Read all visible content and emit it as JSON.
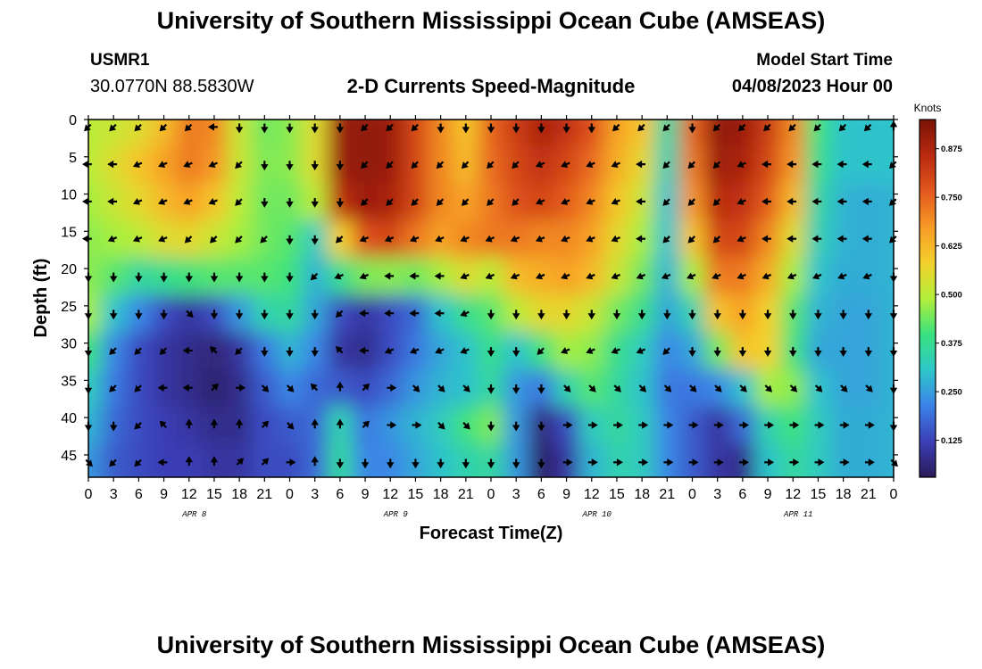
{
  "header": {
    "title": "University of Southern Mississippi Ocean Cube (AMSEAS)",
    "station_id": "USMR1",
    "station_coords": "30.0770N  88.5830W",
    "subtitle": "2-D Currents Speed-Magnitude",
    "model_start_label": "Model Start Time",
    "model_start_value": "04/08/2023 Hour 00"
  },
  "footer": {
    "title": "University of Southern Mississippi Ocean Cube (AMSEAS)"
  },
  "chart_data": {
    "type": "heatmap",
    "title": "2-D Currents Speed-Magnitude",
    "xlabel": "Forecast Time(Z)",
    "ylabel": "Depth (ft)",
    "x_ticks": [
      "0",
      "3",
      "6",
      "9",
      "12",
      "15",
      "18",
      "21",
      "0",
      "3",
      "6",
      "9",
      "12",
      "15",
      "18",
      "21",
      "0",
      "3",
      "6",
      "9",
      "12",
      "15",
      "18",
      "21",
      "0",
      "3",
      "6",
      "9",
      "12",
      "15",
      "18",
      "21",
      "0"
    ],
    "day_labels": [
      "APR 8",
      "APR 9",
      "APR 10",
      "APR 11"
    ],
    "forecast_hours": [
      0,
      3,
      6,
      9,
      12,
      15,
      18,
      21,
      24,
      27,
      30,
      33,
      36,
      39,
      42,
      45,
      48,
      51,
      54,
      57,
      60,
      63,
      66,
      69,
      72,
      75,
      78,
      81,
      84,
      87,
      90,
      93,
      96
    ],
    "y_ticks": [
      0,
      5,
      10,
      15,
      20,
      25,
      30,
      35,
      40,
      45
    ],
    "ylim": [
      0,
      48
    ],
    "depths_ft": [
      1,
      6,
      11,
      16,
      21,
      26,
      31,
      36,
      41,
      46
    ],
    "colorbar": {
      "label": "Knots",
      "ticks": [
        0.125,
        0.25,
        0.375,
        0.5,
        0.625,
        0.75,
        0.875
      ],
      "tick_labels": [
        "0.125",
        "0.250",
        "0.375",
        "0.500",
        "0.625",
        "0.750",
        "0.875"
      ],
      "range": [
        0.03,
        0.95
      ],
      "colors": [
        "#2a1a58",
        "#3b3fb7",
        "#3b82e8",
        "#2ec7c9",
        "#39e27e",
        "#b3ef3a",
        "#f4d02b",
        "#f79a26",
        "#e3571e",
        "#b92a10",
        "#7a1205"
      ]
    },
    "speed_knots": [
      [
        0.5,
        0.52,
        0.55,
        0.62,
        0.72,
        0.7,
        0.52,
        0.44,
        0.46,
        0.55,
        0.9,
        0.92,
        0.9,
        0.8,
        0.7,
        0.6,
        0.75,
        0.82,
        0.88,
        0.84,
        0.78,
        0.66,
        0.6,
        0.35,
        0.75,
        0.92,
        0.9,
        0.82,
        0.7,
        0.4,
        0.3,
        0.3,
        0.3
      ],
      [
        0.5,
        0.55,
        0.6,
        0.66,
        0.72,
        0.68,
        0.52,
        0.45,
        0.46,
        0.55,
        0.9,
        0.92,
        0.9,
        0.8,
        0.7,
        0.62,
        0.74,
        0.8,
        0.84,
        0.8,
        0.74,
        0.64,
        0.56,
        0.33,
        0.72,
        0.9,
        0.88,
        0.8,
        0.68,
        0.38,
        0.3,
        0.3,
        0.3
      ],
      [
        0.48,
        0.52,
        0.56,
        0.62,
        0.66,
        0.6,
        0.5,
        0.44,
        0.44,
        0.5,
        0.85,
        0.9,
        0.88,
        0.8,
        0.7,
        0.66,
        0.72,
        0.78,
        0.8,
        0.76,
        0.7,
        0.6,
        0.52,
        0.3,
        0.68,
        0.86,
        0.84,
        0.76,
        0.62,
        0.35,
        0.28,
        0.27,
        0.28
      ],
      [
        0.46,
        0.48,
        0.5,
        0.55,
        0.56,
        0.52,
        0.48,
        0.44,
        0.42,
        0.32,
        0.58,
        0.78,
        0.8,
        0.72,
        0.66,
        0.7,
        0.72,
        0.72,
        0.7,
        0.7,
        0.66,
        0.56,
        0.48,
        0.3,
        0.6,
        0.8,
        0.8,
        0.7,
        0.55,
        0.33,
        0.28,
        0.27,
        0.28
      ],
      [
        0.46,
        0.42,
        0.36,
        0.38,
        0.4,
        0.42,
        0.42,
        0.42,
        0.4,
        0.28,
        0.38,
        0.45,
        0.46,
        0.44,
        0.48,
        0.55,
        0.5,
        0.62,
        0.64,
        0.66,
        0.62,
        0.52,
        0.44,
        0.28,
        0.48,
        0.72,
        0.72,
        0.64,
        0.48,
        0.3,
        0.27,
        0.27,
        0.28
      ],
      [
        0.48,
        0.3,
        0.22,
        0.14,
        0.1,
        0.14,
        0.24,
        0.34,
        0.36,
        0.26,
        0.14,
        0.1,
        0.14,
        0.18,
        0.3,
        0.38,
        0.42,
        0.5,
        0.56,
        0.56,
        0.52,
        0.44,
        0.38,
        0.26,
        0.34,
        0.6,
        0.66,
        0.58,
        0.42,
        0.28,
        0.26,
        0.26,
        0.28
      ],
      [
        0.4,
        0.22,
        0.14,
        0.1,
        0.08,
        0.06,
        0.1,
        0.2,
        0.28,
        0.22,
        0.1,
        0.08,
        0.14,
        0.2,
        0.26,
        0.3,
        0.38,
        0.3,
        0.4,
        0.48,
        0.46,
        0.38,
        0.32,
        0.22,
        0.26,
        0.44,
        0.6,
        0.58,
        0.4,
        0.26,
        0.26,
        0.26,
        0.28
      ],
      [
        0.32,
        0.2,
        0.14,
        0.1,
        0.08,
        0.05,
        0.08,
        0.16,
        0.22,
        0.18,
        0.16,
        0.14,
        0.18,
        0.24,
        0.28,
        0.3,
        0.36,
        0.24,
        0.2,
        0.34,
        0.42,
        0.36,
        0.3,
        0.2,
        0.2,
        0.22,
        0.3,
        0.48,
        0.46,
        0.3,
        0.26,
        0.26,
        0.28
      ],
      [
        0.28,
        0.18,
        0.14,
        0.12,
        0.1,
        0.08,
        0.08,
        0.14,
        0.16,
        0.18,
        0.34,
        0.2,
        0.24,
        0.28,
        0.32,
        0.4,
        0.45,
        0.24,
        0.06,
        0.14,
        0.32,
        0.36,
        0.32,
        0.22,
        0.16,
        0.1,
        0.18,
        0.34,
        0.4,
        0.32,
        0.27,
        0.27,
        0.28
      ],
      [
        0.24,
        0.16,
        0.14,
        0.12,
        0.12,
        0.1,
        0.1,
        0.14,
        0.14,
        0.18,
        0.36,
        0.22,
        0.22,
        0.26,
        0.3,
        0.34,
        0.36,
        0.24,
        0.04,
        0.1,
        0.28,
        0.34,
        0.32,
        0.22,
        0.16,
        0.1,
        0.08,
        0.3,
        0.36,
        0.32,
        0.27,
        0.27,
        0.28
      ]
    ],
    "current_direction_deg": [
      [
        225,
        225,
        225,
        225,
        225,
        270,
        180,
        180,
        180,
        180,
        180,
        225,
        225,
        225,
        180,
        180,
        180,
        180,
        180,
        180,
        180,
        225,
        225,
        225,
        180,
        225,
        225,
        225,
        225,
        225,
        225,
        225,
        0
      ],
      [
        270,
        270,
        247,
        247,
        247,
        247,
        225,
        180,
        180,
        180,
        180,
        225,
        225,
        225,
        225,
        225,
        225,
        225,
        247,
        247,
        247,
        247,
        270,
        225,
        225,
        225,
        247,
        270,
        270,
        270,
        270,
        270,
        225
      ],
      [
        270,
        270,
        247,
        247,
        247,
        247,
        225,
        180,
        180,
        180,
        180,
        225,
        225,
        225,
        225,
        225,
        225,
        225,
        247,
        247,
        247,
        247,
        270,
        225,
        225,
        225,
        247,
        270,
        270,
        270,
        270,
        270,
        225
      ],
      [
        270,
        247,
        247,
        247,
        225,
        225,
        225,
        225,
        180,
        180,
        225,
        247,
        247,
        247,
        247,
        247,
        247,
        247,
        247,
        247,
        247,
        247,
        270,
        225,
        225,
        225,
        247,
        270,
        270,
        270,
        270,
        270,
        225
      ],
      [
        180,
        180,
        180,
        180,
        180,
        180,
        180,
        180,
        180,
        225,
        247,
        247,
        270,
        270,
        270,
        247,
        247,
        247,
        247,
        247,
        247,
        247,
        247,
        247,
        247,
        247,
        247,
        247,
        247,
        247,
        247,
        247,
        180
      ],
      [
        180,
        180,
        180,
        180,
        135,
        180,
        180,
        180,
        180,
        180,
        225,
        270,
        270,
        270,
        270,
        247,
        180,
        180,
        180,
        180,
        180,
        180,
        180,
        180,
        180,
        180,
        180,
        180,
        180,
        180,
        180,
        180,
        180
      ],
      [
        180,
        225,
        225,
        225,
        270,
        315,
        225,
        180,
        180,
        180,
        315,
        270,
        247,
        247,
        247,
        247,
        180,
        180,
        225,
        247,
        247,
        247,
        247,
        225,
        180,
        180,
        180,
        180,
        180,
        180,
        180,
        180,
        180
      ],
      [
        180,
        225,
        225,
        270,
        270,
        45,
        90,
        135,
        135,
        315,
        0,
        45,
        90,
        135,
        135,
        135,
        180,
        180,
        180,
        135,
        135,
        135,
        135,
        135,
        135,
        135,
        135,
        135,
        135,
        135,
        135,
        135,
        180
      ],
      [
        180,
        180,
        225,
        315,
        0,
        0,
        0,
        45,
        135,
        0,
        0,
        45,
        90,
        90,
        135,
        135,
        180,
        180,
        180,
        90,
        90,
        90,
        90,
        90,
        90,
        90,
        90,
        90,
        90,
        90,
        90,
        90,
        180
      ],
      [
        135,
        225,
        225,
        270,
        0,
        0,
        45,
        45,
        90,
        0,
        180,
        180,
        180,
        180,
        180,
        180,
        180,
        180,
        180,
        90,
        90,
        90,
        90,
        90,
        90,
        90,
        90,
        90,
        90,
        90,
        90,
        90,
        135
      ]
    ]
  }
}
